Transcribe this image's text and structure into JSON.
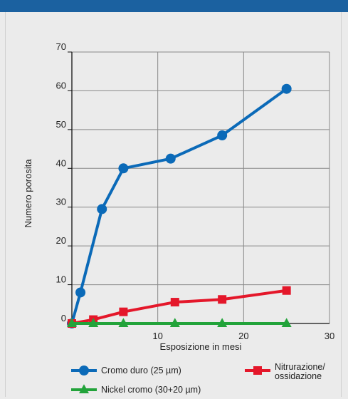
{
  "chart_data": {
    "type": "line",
    "xlabel": "Esposizione in mesi",
    "ylabel": "Numero porosita",
    "xlim": [
      0,
      30
    ],
    "ylim": [
      0,
      70
    ],
    "x_ticks": [
      "10",
      "20",
      "30"
    ],
    "y_ticks": [
      "0",
      "10",
      "20",
      "30",
      "40",
      "50",
      "60",
      "70"
    ],
    "grid": true,
    "legend_position": "bottom",
    "series": [
      {
        "name": "Cromo duro (25  µm)",
        "color": "#0b6ab8",
        "marker": "circle",
        "x": [
          0,
          1,
          3.5,
          6,
          11.5,
          17.5,
          25
        ],
        "y": [
          0,
          8,
          29.5,
          40,
          42.5,
          48.5,
          60.5
        ]
      },
      {
        "name": "Nitrurazione/ ossidazione",
        "color": "#e4172a",
        "marker": "square",
        "x": [
          0,
          2.5,
          6,
          12,
          17.5,
          25
        ],
        "y": [
          0,
          1,
          3,
          5.5,
          6.2,
          8.5
        ]
      },
      {
        "name": "Nickel cromo (30+20  µm)",
        "color": "#22a33a",
        "marker": "triangle",
        "x": [
          0,
          2.5,
          6,
          12,
          17.5,
          25
        ],
        "y": [
          0,
          0,
          0,
          0,
          0,
          0
        ]
      }
    ]
  }
}
